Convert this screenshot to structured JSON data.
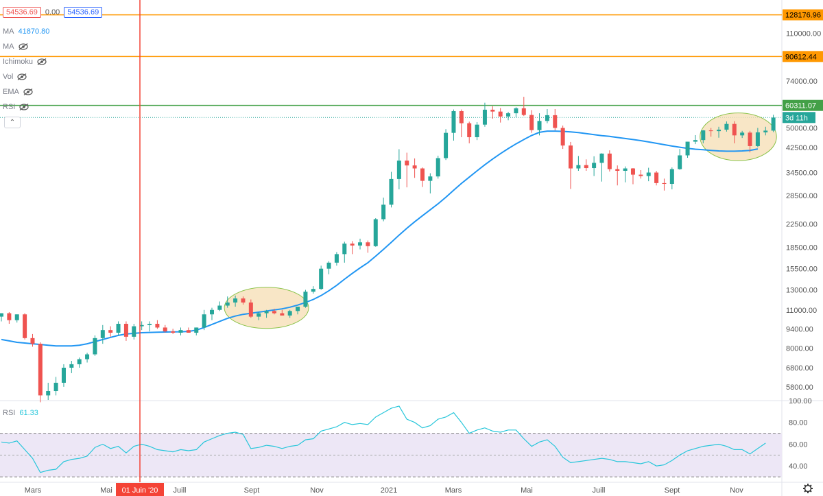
{
  "legend": {
    "price_box_1": "54536.69",
    "change": "0.00",
    "price_box_2": "54536.69",
    "ma1_label": "MA",
    "ma1_value": "41870.80",
    "ma2_label": "MA",
    "ichimoku_label": "Ichimoku",
    "vol_label": "Vol",
    "ema_label": "EMA",
    "rsi_overlay_label": "RSI",
    "rsi_pane_label": "RSI",
    "rsi_pane_value": "61.33",
    "collapse_glyph": "⌃"
  },
  "colors": {
    "up": "#26a69a",
    "down": "#ef5350",
    "ma": "#2196f3",
    "orange": "#ff9800",
    "green": "#43a047",
    "red_line": "#f44336",
    "rsi_line": "#26c6da",
    "rsi_band": "#ede7f6",
    "ellipse_fill": "#f5deb3",
    "ellipse_stroke": "#8bc34a"
  },
  "chart_data": {
    "type": "candlestick",
    "scale": "log",
    "ylim": [
      5200,
      145000
    ],
    "y_tick_labels": [
      "110000.00",
      "74000.00",
      "60311.07",
      "50000.00",
      "42500.00",
      "34500.00",
      "28500.00",
      "22500.00",
      "18500.00",
      "15500.00",
      "13000.00",
      "11000.00",
      "9400.00",
      "8000.00",
      "6800.00",
      "5800.00"
    ],
    "x_tick_labels": [
      "Mars",
      "Mai",
      "01 Juin '20",
      "Juill",
      "Sept",
      "Nov",
      "2021",
      "Mars",
      "Mai",
      "Juill",
      "Sept",
      "Nov"
    ],
    "horizontal_levels": [
      {
        "value": 128176.96,
        "label": "128176.96",
        "color": "orange"
      },
      {
        "value": 90612.44,
        "label": "90612.44",
        "color": "orange"
      },
      {
        "value": 60311.07,
        "label": "60311.07",
        "color": "green"
      }
    ],
    "last_price_line": 54536.69,
    "countdown": "3d 11h",
    "vertical_marker": {
      "label": "01 Juin '20",
      "index": 18
    },
    "candles": [
      [
        10400,
        10700,
        10000,
        10700
      ],
      [
        10700,
        10800,
        9800,
        10100
      ],
      [
        10100,
        10600,
        9900,
        10600
      ],
      [
        10600,
        10700,
        8600,
        8700
      ],
      [
        8700,
        9000,
        8100,
        8300
      ],
      [
        8300,
        8400,
        5100,
        5400
      ],
      [
        5400,
        6000,
        5200,
        5600
      ],
      [
        5600,
        6300,
        5400,
        6000
      ],
      [
        6000,
        7000,
        5800,
        6800
      ],
      [
        6800,
        7200,
        6500,
        7000
      ],
      [
        7000,
        7400,
        6800,
        7300
      ],
      [
        7300,
        7700,
        7100,
        7600
      ],
      [
        7600,
        8900,
        7500,
        8700
      ],
      [
        8700,
        9700,
        8300,
        9300
      ],
      [
        9300,
        9600,
        8800,
        9100
      ],
      [
        9100,
        10000,
        8900,
        9800
      ],
      [
        9800,
        10000,
        8500,
        8800
      ],
      [
        8800,
        9800,
        8600,
        9600
      ],
      [
        9600,
        10000,
        9300,
        9700
      ],
      [
        9700,
        10000,
        9200,
        9800
      ],
      [
        9800,
        10100,
        9400,
        9500
      ],
      [
        9500,
        9700,
        9100,
        9200
      ],
      [
        9200,
        9400,
        9000,
        9100
      ],
      [
        9100,
        9500,
        8900,
        9300
      ],
      [
        9300,
        9500,
        9100,
        9100
      ],
      [
        9100,
        9500,
        8900,
        9500
      ],
      [
        9500,
        11000,
        9300,
        10600
      ],
      [
        10600,
        11200,
        10100,
        11000
      ],
      [
        11000,
        11800,
        10900,
        11400
      ],
      [
        11400,
        12300,
        11200,
        11700
      ],
      [
        11700,
        12400,
        11300,
        12100
      ],
      [
        12100,
        12300,
        11500,
        11700
      ],
      [
        11700,
        12000,
        10300,
        10400
      ],
      [
        10400,
        10800,
        10100,
        10700
      ],
      [
        10700,
        11000,
        10300,
        10900
      ],
      [
        10900,
        11100,
        10600,
        10700
      ],
      [
        10700,
        11000,
        10500,
        10500
      ],
      [
        10500,
        11000,
        10300,
        10900
      ],
      [
        10900,
        11100,
        10600,
        11300
      ],
      [
        11300,
        13000,
        11200,
        12800
      ],
      [
        12800,
        13400,
        12600,
        13100
      ],
      [
        13100,
        15900,
        13000,
        15500
      ],
      [
        15500,
        16500,
        14800,
        16300
      ],
      [
        16300,
        17800,
        15900,
        17500
      ],
      [
        17500,
        19400,
        16300,
        19100
      ],
      [
        19100,
        19500,
        17500,
        18800
      ],
      [
        18800,
        19900,
        18200,
        19300
      ],
      [
        19300,
        19600,
        17700,
        18700
      ],
      [
        18700,
        23600,
        18600,
        23400
      ],
      [
        23400,
        28000,
        23000,
        26400
      ],
      [
        26400,
        34700,
        25800,
        32700
      ],
      [
        32700,
        41900,
        30000,
        38100
      ],
      [
        38100,
        40700,
        30500,
        36600
      ],
      [
        36600,
        38800,
        33000,
        35700
      ],
      [
        35700,
        36000,
        30600,
        32200
      ],
      [
        32200,
        34300,
        29000,
        33400
      ],
      [
        33400,
        39700,
        32800,
        38900
      ],
      [
        38900,
        49500,
        38300,
        48000
      ],
      [
        48000,
        58300,
        45000,
        57500
      ],
      [
        57500,
        58300,
        46300,
        52000
      ],
      [
        52000,
        52700,
        44000,
        46300
      ],
      [
        46300,
        52500,
        45200,
        51400
      ],
      [
        51400,
        61700,
        50500,
        58200
      ],
      [
        58200,
        59900,
        54000,
        57300
      ],
      [
        57300,
        59000,
        52300,
        55000
      ],
      [
        55000,
        57200,
        53300,
        56500
      ],
      [
        56500,
        59400,
        54700,
        58900
      ],
      [
        58900,
        64800,
        55200,
        55700
      ],
      [
        55700,
        58000,
        48000,
        49100
      ],
      [
        49100,
        56500,
        47000,
        53000
      ],
      [
        53000,
        58500,
        52000,
        55600
      ],
      [
        55600,
        58500,
        49000,
        50000
      ],
      [
        50000,
        51000,
        42000,
        43200
      ],
      [
        43200,
        44500,
        30100,
        35700
      ],
      [
        35700,
        39600,
        35000,
        36700
      ],
      [
        36700,
        38500,
        35000,
        35800
      ],
      [
        35800,
        39500,
        33500,
        37400
      ],
      [
        37400,
        40500,
        32000,
        40400
      ],
      [
        40400,
        41500,
        34800,
        35500
      ],
      [
        35500,
        36600,
        31000,
        35000
      ],
      [
        35000,
        36300,
        31800,
        35700
      ],
      [
        35700,
        35800,
        31300,
        33900
      ],
      [
        33900,
        35200,
        32800,
        33500
      ],
      [
        33500,
        35900,
        32100,
        34500
      ],
      [
        34500,
        35000,
        31000,
        31600
      ],
      [
        31600,
        32800,
        29700,
        31400
      ],
      [
        31400,
        36000,
        30000,
        35500
      ],
      [
        35500,
        42000,
        35300,
        39800
      ],
      [
        39800,
        44600,
        39000,
        44600
      ],
      [
        44600,
        47100,
        43700,
        45200
      ],
      [
        45200,
        49100,
        44000,
        49000
      ],
      [
        49000,
        50000,
        46500,
        48700
      ],
      [
        48700,
        50500,
        46100,
        49300
      ],
      [
        49300,
        52800,
        48500,
        51700
      ],
      [
        51700,
        52900,
        44000,
        47000
      ],
      [
        47000,
        48800,
        46000,
        48100
      ],
      [
        48100,
        48800,
        40800,
        43000
      ],
      [
        43000,
        50000,
        42600,
        48200
      ],
      [
        48200,
        50500,
        47000,
        48900
      ],
      [
        48900,
        55800,
        48300,
        54500
      ]
    ],
    "ma_series": [
      8600,
      8500,
      8400,
      8350,
      8300,
      8250,
      8200,
      8150,
      8150,
      8150,
      8200,
      8300,
      8450,
      8600,
      8750,
      8900,
      9000,
      9050,
      9100,
      9120,
      9140,
      9150,
      9160,
      9170,
      9200,
      9300,
      9500,
      9750,
      10000,
      10250,
      10450,
      10600,
      10700,
      10800,
      10900,
      11000,
      11100,
      11250,
      11450,
      11700,
      12000,
      12400,
      12900,
      13500,
      14200,
      14900,
      15600,
      16300,
      17200,
      18200,
      19300,
      20500,
      21700,
      22900,
      24100,
      25300,
      26600,
      28100,
      29800,
      31500,
      33200,
      35000,
      36800,
      38600,
      40400,
      42100,
      43800,
      45400,
      47000,
      48200,
      48700,
      48700,
      48600,
      48400,
      48100,
      47700,
      47300,
      46900,
      46600,
      46200,
      45800,
      45400,
      45000,
      44500,
      44000,
      43500,
      43000,
      42600,
      42200,
      41900,
      41700,
      41500,
      41300,
      41200,
      41200,
      41300,
      41500,
      42000
    ],
    "rsi": {
      "ylim": [
        25,
        100
      ],
      "y_tick_labels": [
        "100.00",
        "80.00",
        "60.00",
        "40.00"
      ],
      "bands": [
        30,
        70
      ],
      "midline": 50,
      "series": [
        62,
        61,
        63,
        55,
        47,
        34,
        36,
        37,
        44,
        46,
        47,
        49,
        57,
        60,
        56,
        58,
        52,
        58,
        60,
        58,
        55,
        54,
        53,
        55,
        54,
        55,
        62,
        65,
        68,
        70,
        71,
        69,
        56,
        57,
        59,
        58,
        56,
        58,
        59,
        64,
        65,
        72,
        74,
        76,
        80,
        78,
        79,
        78,
        85,
        89,
        93,
        95,
        83,
        80,
        75,
        77,
        83,
        85,
        89,
        80,
        70,
        73,
        75,
        72,
        71,
        73,
        73,
        65,
        58,
        62,
        64,
        58,
        48,
        43,
        44,
        45,
        46,
        47,
        46,
        44,
        44,
        43,
        42,
        44,
        40,
        41,
        45,
        50,
        54,
        56,
        58,
        59,
        60,
        58,
        55,
        55,
        51,
        56,
        61
      ]
    },
    "highlight_ellipses": [
      {
        "from_index": 30,
        "to_index": 38
      },
      {
        "from_index": 91,
        "to_index": 98
      }
    ]
  }
}
